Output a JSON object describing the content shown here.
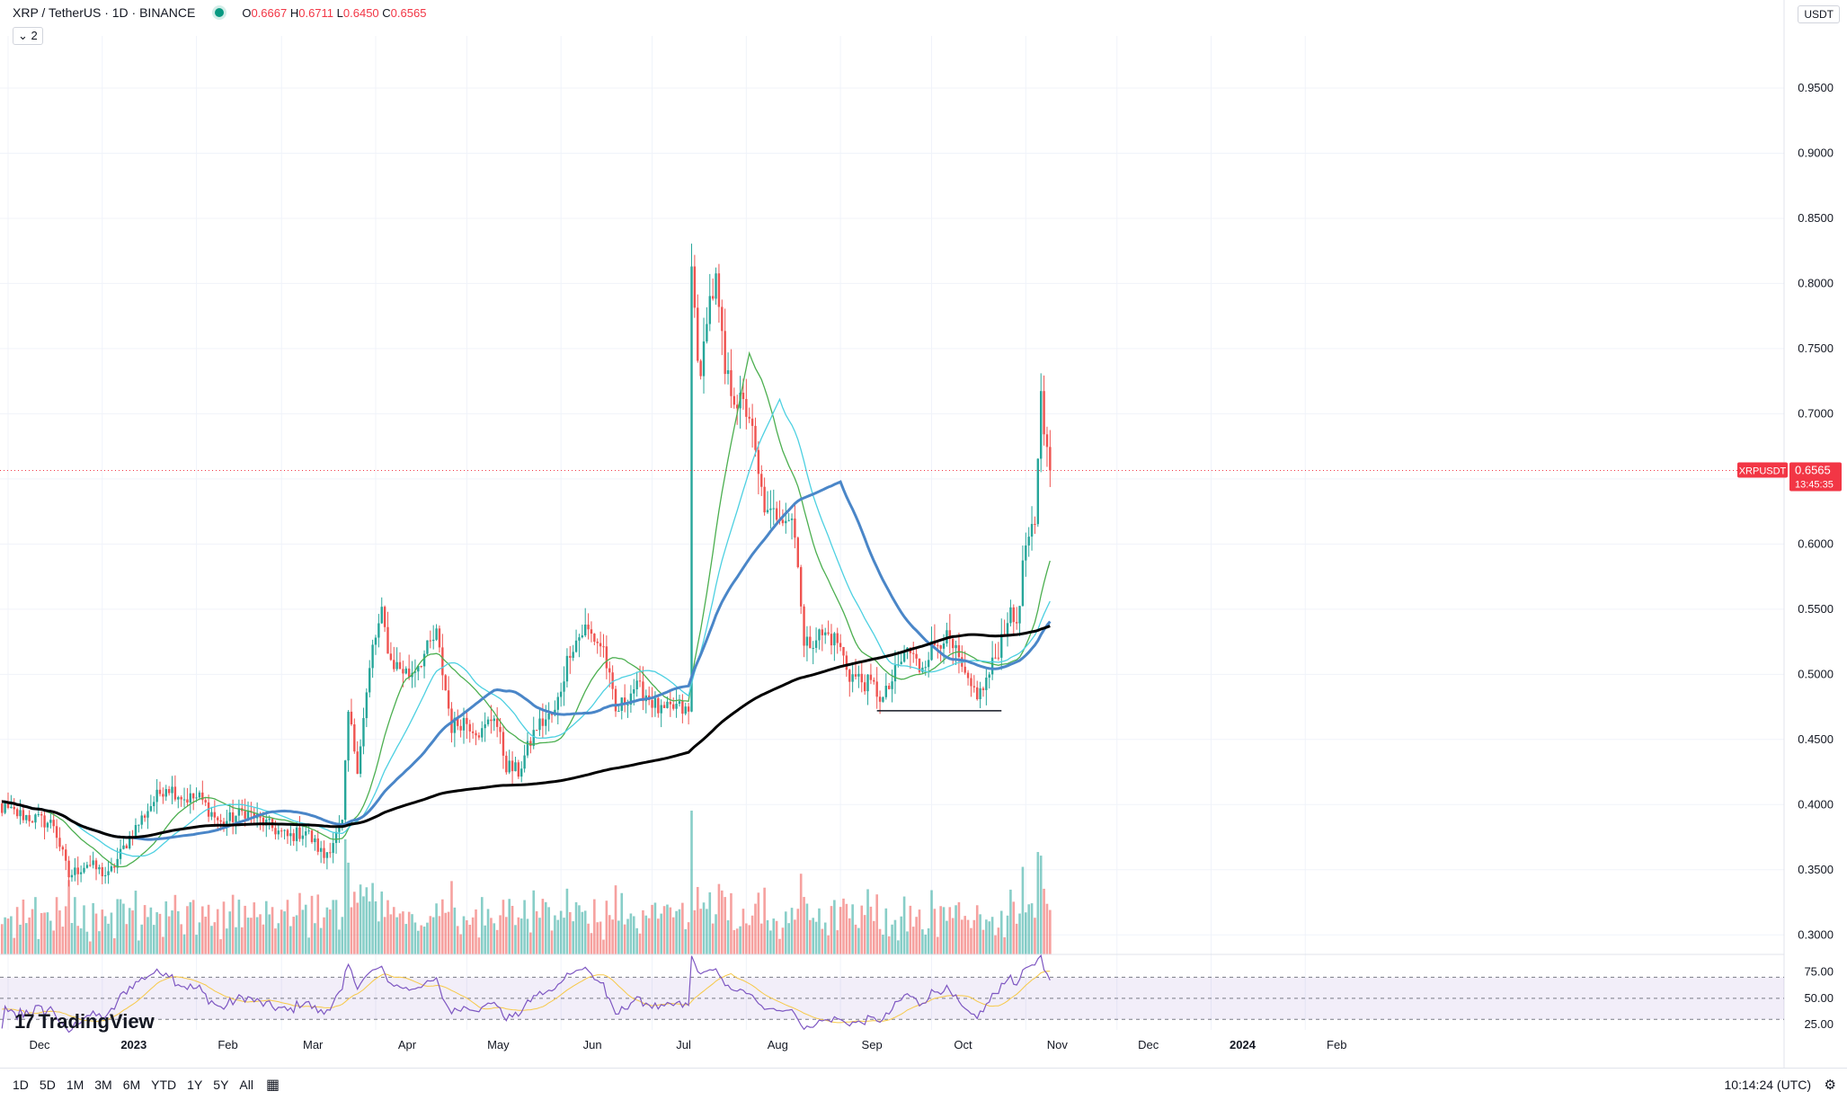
{
  "legend": {
    "title": "XRP / TetherUS · 1D · BINANCE",
    "o_label": "O",
    "o": "0.6667",
    "h_label": "H",
    "h": "0.6711",
    "l_label": "L",
    "l": "0.6450",
    "c_label": "C",
    "c": "0.6565",
    "indicators_count": "2"
  },
  "currency": "USDT",
  "price_tag": {
    "symbol": "XRPUSDT",
    "price": "0.6565",
    "countdown": "13:45:35",
    "color": "#f23645"
  },
  "branding": "TradingView",
  "bottom_bar": {
    "ranges": [
      "1D",
      "5D",
      "1M",
      "3M",
      "6M",
      "YTD",
      "1Y",
      "5Y",
      "All"
    ],
    "clock": "10:14:24 (UTC)"
  },
  "colors": {
    "up": "#26a69a",
    "down": "#ef5350",
    "rsi": "#7e57c2",
    "rsi_ma": "#f7c948",
    "ma_fast": "#4caf50",
    "ma_mid": "#4a86c8",
    "ma_cyan": "#4dd0e1",
    "ma_slow": "#000000"
  },
  "chart_data": [
    {
      "type": "candlestick",
      "symbol": "XRP / TetherUS",
      "interval": "1D",
      "y_axis": {
        "ticks": [
          0.3,
          0.35,
          0.4,
          0.45,
          0.5,
          0.55,
          0.6,
          0.65,
          0.7,
          0.75,
          0.8,
          0.85,
          0.9,
          0.95
        ],
        "range": [
          0.285,
          0.99
        ],
        "position": "right"
      },
      "x_axis": {
        "labels": [
          "Dec",
          "2023",
          "Feb",
          "Mar",
          "Apr",
          "May",
          "Jun",
          "Jul",
          "Aug",
          "Sep",
          "Oct",
          "Nov",
          "Dec",
          "2024",
          "Feb"
        ],
        "label_days": [
          0,
          31,
          62,
          90,
          121,
          151,
          182,
          212,
          243,
          274,
          304,
          335,
          365,
          396,
          427
        ]
      },
      "last_day": 343,
      "price_anchors": [
        [
          -8,
          0.405
        ],
        [
          0,
          0.395
        ],
        [
          15,
          0.385
        ],
        [
          20,
          0.345
        ],
        [
          26,
          0.355
        ],
        [
          33,
          0.345
        ],
        [
          40,
          0.375
        ],
        [
          47,
          0.4
        ],
        [
          52,
          0.415
        ],
        [
          58,
          0.405
        ],
        [
          63,
          0.405
        ],
        [
          70,
          0.385
        ],
        [
          78,
          0.395
        ],
        [
          85,
          0.385
        ],
        [
          92,
          0.375
        ],
        [
          98,
          0.38
        ],
        [
          104,
          0.36
        ],
        [
          110,
          0.385
        ],
        [
          112,
          0.47
        ],
        [
          115,
          0.43
        ],
        [
          120,
          0.52
        ],
        [
          123,
          0.545
        ],
        [
          126,
          0.51
        ],
        [
          132,
          0.5
        ],
        [
          137,
          0.515
        ],
        [
          141,
          0.53
        ],
        [
          146,
          0.46
        ],
        [
          150,
          0.465
        ],
        [
          156,
          0.455
        ],
        [
          160,
          0.47
        ],
        [
          164,
          0.43
        ],
        [
          168,
          0.425
        ],
        [
          174,
          0.46
        ],
        [
          180,
          0.47
        ],
        [
          185,
          0.52
        ],
        [
          190,
          0.535
        ],
        [
          196,
          0.52
        ],
        [
          200,
          0.47
        ],
        [
          206,
          0.49
        ],
        [
          210,
          0.485
        ],
        [
          215,
          0.47
        ],
        [
          220,
          0.475
        ],
        [
          224,
          0.47
        ],
        [
          225,
          0.81
        ],
        [
          228,
          0.72
        ],
        [
          230,
          0.78
        ],
        [
          233,
          0.8
        ],
        [
          236,
          0.73
        ],
        [
          240,
          0.71
        ],
        [
          244,
          0.7
        ],
        [
          247,
          0.65
        ],
        [
          250,
          0.62
        ],
        [
          254,
          0.625
        ],
        [
          258,
          0.62
        ],
        [
          260,
          0.59
        ],
        [
          262,
          0.52
        ],
        [
          266,
          0.53
        ],
        [
          270,
          0.53
        ],
        [
          273,
          0.525
        ],
        [
          277,
          0.5
        ],
        [
          281,
          0.495
        ],
        [
          285,
          0.49
        ],
        [
          288,
          0.48
        ],
        [
          292,
          0.5
        ],
        [
          296,
          0.52
        ],
        [
          300,
          0.505
        ],
        [
          304,
          0.52
        ],
        [
          308,
          0.53
        ],
        [
          312,
          0.515
        ],
        [
          316,
          0.49
        ],
        [
          320,
          0.485
        ],
        [
          323,
          0.5
        ],
        [
          326,
          0.52
        ],
        [
          329,
          0.545
        ],
        [
          332,
          0.54
        ],
        [
          335,
          0.6
        ],
        [
          338,
          0.61
        ],
        [
          339,
          0.66
        ],
        [
          340,
          0.72
        ],
        [
          341,
          0.69
        ],
        [
          342,
          0.67
        ],
        [
          343,
          0.6565
        ]
      ],
      "horizontal_support": {
        "price": 0.472,
        "from_day": 286,
        "to_day": 327
      },
      "last_price": 0.6565,
      "moving_averages": [
        {
          "color": "#4caf50",
          "period": 20
        },
        {
          "color": "#4dd0e1",
          "period": 30
        },
        {
          "color": "#4a86c8",
          "period": 50
        },
        {
          "color": "#000000",
          "period": 200
        }
      ],
      "volume": {
        "shown": true,
        "placement": "bottom of price pane"
      }
    },
    {
      "type": "line",
      "name": "RSI",
      "y_axis": {
        "ticks": [
          25.0,
          50.0,
          75.0
        ],
        "range": [
          20,
          90
        ]
      },
      "overbought": 70,
      "oversold": 30,
      "midline": 50
    }
  ]
}
